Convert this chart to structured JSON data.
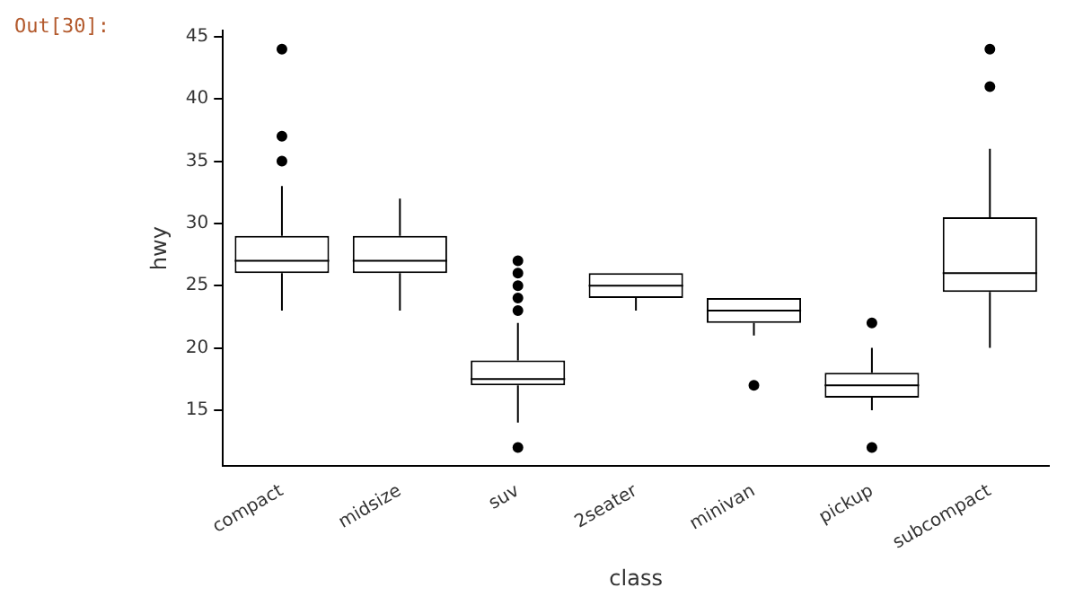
{
  "chart_data": {
    "type": "box",
    "xlabel": "class",
    "ylabel": "hwy",
    "annotations": [
      "Out[30]:"
    ],
    "categories": [
      "compact",
      "midsize",
      "suv",
      "2seater",
      "minivan",
      "pickup",
      "subcompact"
    ],
    "boxes": [
      {
        "low": 23,
        "q1": 26,
        "median": 27,
        "q3": 29,
        "high": 33,
        "outliers": [
          35,
          37,
          44
        ]
      },
      {
        "low": 23,
        "q1": 26,
        "median": 27,
        "q3": 29,
        "high": 32
      },
      {
        "low": 14,
        "q1": 17,
        "median": 17.5,
        "q3": 19,
        "high": 22,
        "outliers": [
          12,
          23,
          24,
          25,
          26,
          27
        ]
      },
      {
        "low": 23,
        "q1": 24,
        "median": 25,
        "q3": 26,
        "high": 26
      },
      {
        "low": 21,
        "q1": 22,
        "median": 23,
        "q3": 24,
        "high": 24,
        "outliers": [
          17
        ]
      },
      {
        "low": 15,
        "q1": 16,
        "median": 17,
        "q3": 18,
        "high": 20,
        "outliers": [
          12,
          22
        ]
      },
      {
        "low": 20,
        "q1": 24.5,
        "median": 26,
        "q3": 30.5,
        "high": 36,
        "outliers": [
          41,
          44
        ]
      }
    ],
    "color": "#000000",
    "ylim": [
      10.5,
      45.5
    ],
    "yticks": [
      15,
      20,
      25,
      30,
      35,
      40,
      45
    ],
    "grid": false,
    "legend": false
  }
}
